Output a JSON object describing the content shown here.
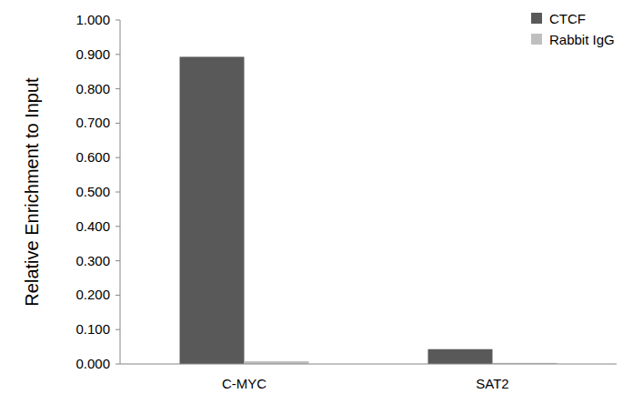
{
  "chart_data": {
    "type": "bar",
    "y_label": "Relative Enrichment to Input",
    "categories": [
      "C-MYC",
      "SAT2"
    ],
    "series": [
      {
        "name": "CTCF",
        "color": "#595959",
        "values": [
          0.893,
          0.043
        ]
      },
      {
        "name": "Rabbit IgG",
        "color": "#bfbfbf",
        "values": [
          0.008,
          0.003
        ]
      }
    ],
    "ylim": [
      0,
      1
    ],
    "yticks": [
      {
        "value": 0,
        "label": "0.000"
      },
      {
        "value": 0.1,
        "label": "0.100"
      },
      {
        "value": 0.2,
        "label": "0.200"
      },
      {
        "value": 0.3,
        "label": "0.300"
      },
      {
        "value": 0.4,
        "label": "0.400"
      },
      {
        "value": 0.5,
        "label": "0.500"
      },
      {
        "value": 0.6,
        "label": "0.600"
      },
      {
        "value": 0.7,
        "label": "0.700"
      },
      {
        "value": 0.8,
        "label": "0.800"
      },
      {
        "value": 0.9,
        "label": "0.900"
      },
      {
        "value": 1,
        "label": "1.000"
      }
    ],
    "grid": false,
    "legend": "top-right"
  }
}
